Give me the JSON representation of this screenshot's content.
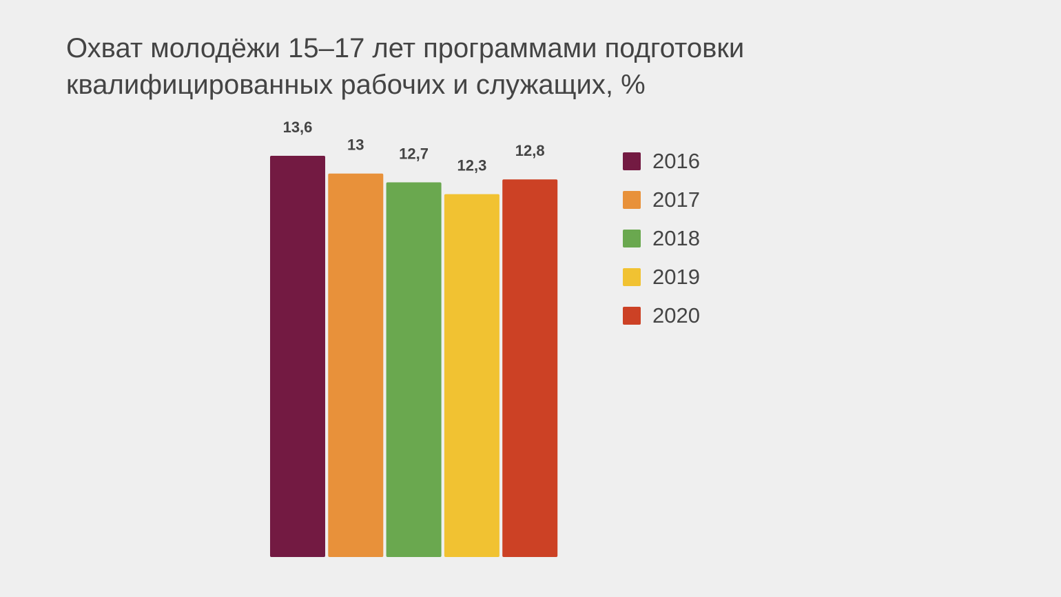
{
  "chart_data": {
    "type": "bar",
    "title_lines": [
      "Охват молодёжи 15–17 лет программами подготовки",
      "квалифицированных рабочих и служащих, %"
    ],
    "categories": [
      "2016",
      "2017",
      "2018",
      "2019",
      "2020"
    ],
    "values": [
      13.6,
      13,
      12.7,
      12.3,
      12.8
    ],
    "value_labels": [
      "13,6",
      "13",
      "12,7",
      "12,3",
      "12,8"
    ],
    "colors": [
      "#731a42",
      "#e8913a",
      "#6aa84f",
      "#f1c232",
      "#cc4125"
    ],
    "ylim": [
      0,
      13.6
    ],
    "grid": false,
    "legend_position": "right",
    "xlabel": "",
    "ylabel": ""
  }
}
